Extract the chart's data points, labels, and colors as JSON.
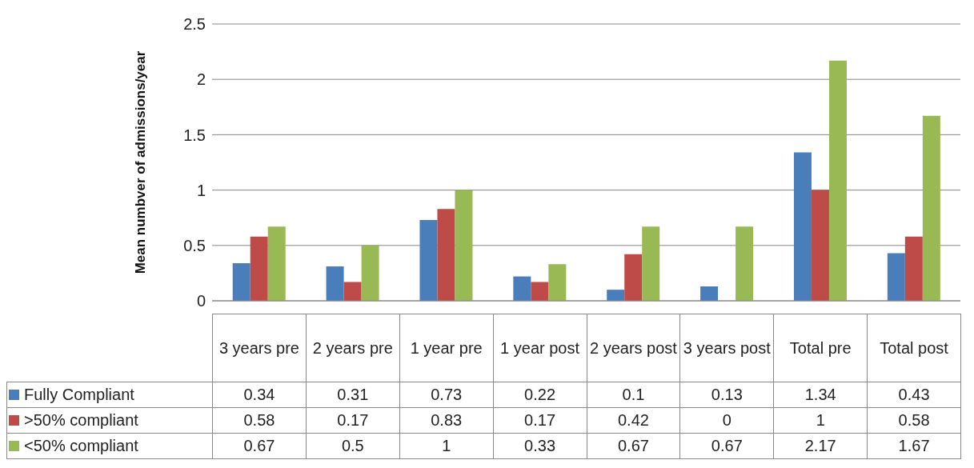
{
  "chart_data": {
    "type": "bar",
    "ylabel": "Mean numbver of admissions/year",
    "categories": [
      "3 years pre",
      "2 years pre",
      "1 year pre",
      "1 year post",
      "2 years post",
      "3 years post",
      "Total pre",
      "Total post"
    ],
    "series": [
      {
        "name": "Fully Compliant",
        "color": "#4a7ebb",
        "values": [
          0.34,
          0.31,
          0.73,
          0.22,
          0.1,
          0.13,
          1.34,
          0.43
        ]
      },
      {
        "name": ">50% compliant",
        "color": "#be4b48",
        "values": [
          0.58,
          0.17,
          0.83,
          0.17,
          0.42,
          0,
          1,
          0.58
        ]
      },
      {
        "name": "<50% compliant",
        "color": "#98b954",
        "values": [
          0.67,
          0.5,
          1,
          0.33,
          0.67,
          0.67,
          2.17,
          1.67
        ]
      }
    ],
    "ylim": [
      0,
      2.5
    ],
    "yticks": [
      0,
      0.5,
      1,
      1.5,
      2,
      2.5
    ],
    "grid": "y",
    "legend": "bottom",
    "data_labels": true
  }
}
